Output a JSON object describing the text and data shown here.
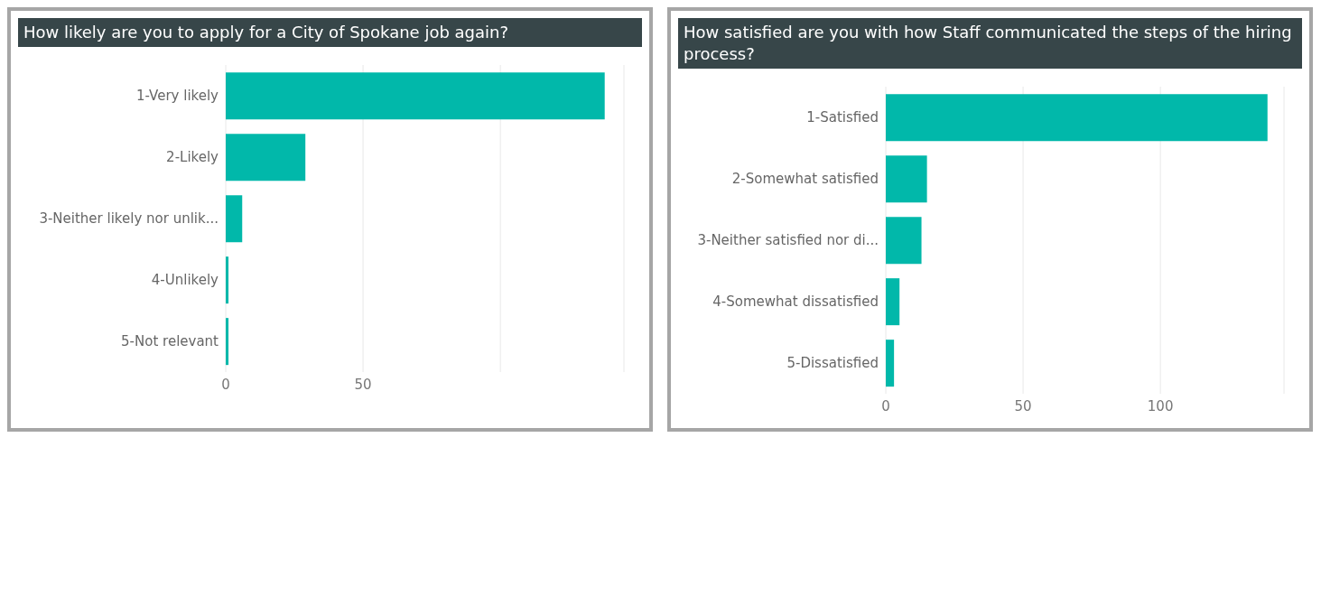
{
  "chart_data": [
    {
      "type": "bar",
      "orientation": "horizontal",
      "title": "How likely are you to apply for a City of Spokane job again?",
      "categories": [
        "1-Very likely",
        "2-Likely",
        "3-Neither likely nor unlik...",
        "4-Unlikely",
        "5-Not relevant"
      ],
      "values": [
        138,
        29,
        6,
        1,
        1
      ],
      "color": "#01b8aa",
      "xlim": [
        0,
        145
      ],
      "xticks": [
        0,
        50,
        {
          "value": 100,
          "label": null
        }
      ],
      "grid": "x"
    },
    {
      "type": "bar",
      "orientation": "horizontal",
      "title": "How satisfied are you with how Staff communicated the steps of the hiring process?",
      "categories": [
        "1-Satisfied",
        "2-Somewhat satisfied",
        "3-Neither satisfied nor di...",
        "4-Somewhat dissatisfied",
        "5-Dissatisfied"
      ],
      "values": [
        139,
        15,
        13,
        5,
        3
      ],
      "color": "#01b8aa",
      "xlim": [
        0,
        145
      ],
      "xticks": [
        0,
        50,
        100
      ],
      "grid": "x"
    }
  ]
}
